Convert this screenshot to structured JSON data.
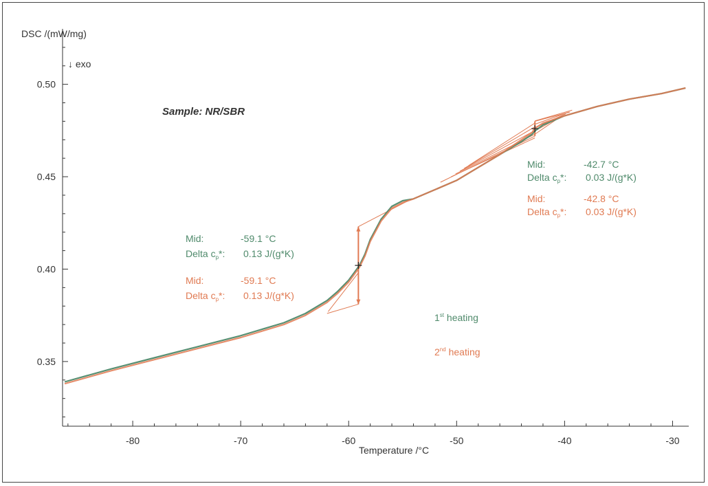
{
  "colors": {
    "heating1": "#4f8a6b",
    "heating2": "#e07a52",
    "axis": "#333333"
  },
  "chart_data": {
    "type": "line",
    "title": "Sample: NR/SBR",
    "xlabel": "Temperature /°C",
    "ylabel": "DSC /(mW/mg)",
    "y_direction_label": "↓ exo",
    "xlim": [
      -86.5,
      -28.5
    ],
    "ylim": [
      0.315,
      0.53
    ],
    "x_ticks": [
      -80,
      -70,
      -60,
      -50,
      -40,
      -30
    ],
    "y_ticks": [
      0.35,
      0.4,
      0.45,
      0.5
    ],
    "x_tick_labels": [
      "-80",
      "-70",
      "-60",
      "-50",
      "-40",
      "-30"
    ],
    "y_tick_labels": [
      "0.35",
      "0.40",
      "0.45",
      "0.50"
    ],
    "grid": false,
    "series": [
      {
        "name": "1st heating",
        "color": "#4f8a6b",
        "x": [
          -86.3,
          -82,
          -78,
          -74,
          -70,
          -66,
          -64,
          -62,
          -61,
          -60,
          -59.5,
          -59,
          -58.5,
          -58,
          -57,
          -56,
          -55,
          -54,
          -52,
          -50,
          -48,
          -46,
          -44,
          -43,
          -42.7,
          -42,
          -40,
          -37,
          -34,
          -31,
          -28.8
        ],
        "y": [
          0.339,
          0.346,
          0.352,
          0.358,
          0.364,
          0.371,
          0.376,
          0.383,
          0.388,
          0.394,
          0.398,
          0.402,
          0.408,
          0.416,
          0.427,
          0.434,
          0.437,
          0.438,
          0.443,
          0.448,
          0.455,
          0.462,
          0.469,
          0.473,
          0.475,
          0.478,
          0.483,
          0.488,
          0.492,
          0.495,
          0.498
        ]
      },
      {
        "name": "2nd heating",
        "color": "#e07a52",
        "x": [
          -86.3,
          -82,
          -78,
          -74,
          -70,
          -66,
          -64,
          -62,
          -61,
          -60,
          -59.5,
          -59,
          -58.5,
          -58,
          -57,
          -56,
          -55,
          -54,
          -52,
          -50,
          -48,
          -46,
          -44,
          -43,
          -42.8,
          -42,
          -40,
          -37,
          -34,
          -31,
          -28.8
        ],
        "y": [
          0.338,
          0.345,
          0.351,
          0.357,
          0.363,
          0.37,
          0.375,
          0.382,
          0.387,
          0.393,
          0.397,
          0.401,
          0.407,
          0.415,
          0.426,
          0.433,
          0.436,
          0.438,
          0.443,
          0.448,
          0.455,
          0.462,
          0.47,
          0.474,
          0.476,
          0.479,
          0.483,
          0.488,
          0.492,
          0.495,
          0.498
        ]
      }
    ],
    "glass_transitions": [
      {
        "mid_x": -59.1,
        "mid_y": 0.402,
        "step_low_y": 0.381,
        "step_high_y": 0.423,
        "baseline_low_from": [
          -62.0,
          0.376
        ],
        "baseline_high_to": [
          -54.5,
          0.437
        ]
      },
      {
        "mid_x": -42.75,
        "mid_y": 0.476,
        "step_low_y": 0.472,
        "step_high_y": 0.48,
        "baseline_low_from": [
          -51.5,
          0.447
        ],
        "baseline_high_to": [
          -39.5,
          0.485
        ]
      }
    ],
    "annotations": {
      "left_green": {
        "mid_label": "Mid:",
        "mid_value": "-59.1 °C",
        "delta_label": "Delta c",
        "delta_sub": "p",
        "delta_suffix": "*:",
        "delta_value": "0.13 J/(g*K)"
      },
      "left_orange": {
        "mid_label": "Mid:",
        "mid_value": "-59.1 °C",
        "delta_label": "Delta c",
        "delta_sub": "p",
        "delta_suffix": "*:",
        "delta_value": "0.13 J/(g*K)"
      },
      "right_green": {
        "mid_label": "Mid:",
        "mid_value": "-42.7 °C",
        "delta_label": "Delta c",
        "delta_sub": "p",
        "delta_suffix": "*:",
        "delta_value": "0.03 J/(g*K)"
      },
      "right_orange": {
        "mid_label": "Mid:",
        "mid_value": "-42.8 °C",
        "delta_label": "Delta c",
        "delta_sub": "p",
        "delta_suffix": "*:",
        "delta_value": "0.03 J/(g*K)"
      }
    },
    "legend": {
      "placement": "center-right",
      "items": [
        {
          "number": "1",
          "sup": "st",
          "text": " heating",
          "color": "#4f8a6b"
        },
        {
          "number": "2",
          "sup": "nd",
          "text": " heating",
          "color": "#e07a52"
        }
      ]
    }
  }
}
